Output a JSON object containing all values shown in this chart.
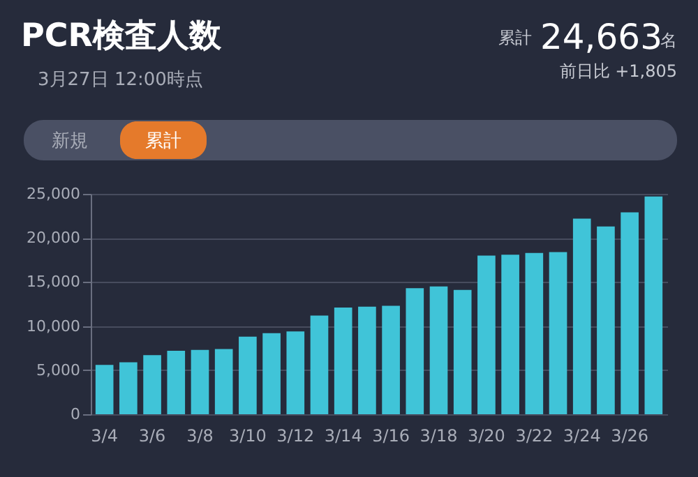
{
  "chart_data": {
    "type": "bar",
    "title": "PCR検査人数",
    "subtitle": "3月27日 12:00時点",
    "annotations": [
      "累計",
      "24,663",
      "名",
      "前日比 +1,805",
      "新規",
      "累計"
    ],
    "categories": [
      "3/4",
      null,
      "3/6",
      null,
      "3/8",
      null,
      "3/10",
      null,
      "3/12",
      null,
      "3/14",
      null,
      "3/16",
      null,
      "3/18",
      null,
      "3/20",
      null,
      "3/22",
      null,
      "3/24",
      null,
      "3/26",
      null
    ],
    "values": [
      5600,
      5900,
      6700,
      7200,
      7300,
      7400,
      8800,
      9200,
      9400,
      11200,
      12100,
      12200,
      12300,
      14300,
      14500,
      14100,
      18000,
      18100,
      18300,
      18400,
      22200,
      21300,
      22900,
      24700
    ],
    "color": "#40c4d8",
    "ylim": [
      0,
      25000
    ],
    "yticks": [
      0,
      {
        "value": 5000,
        "label": "5,000"
      },
      {
        "value": 10000,
        "label": "10,000"
      },
      {
        "value": 15000,
        "label": "15,000"
      },
      {
        "value": 20000,
        "label": "20,000"
      },
      {
        "value": 25000,
        "label": "25,000"
      }
    ],
    "grid": "y"
  }
}
